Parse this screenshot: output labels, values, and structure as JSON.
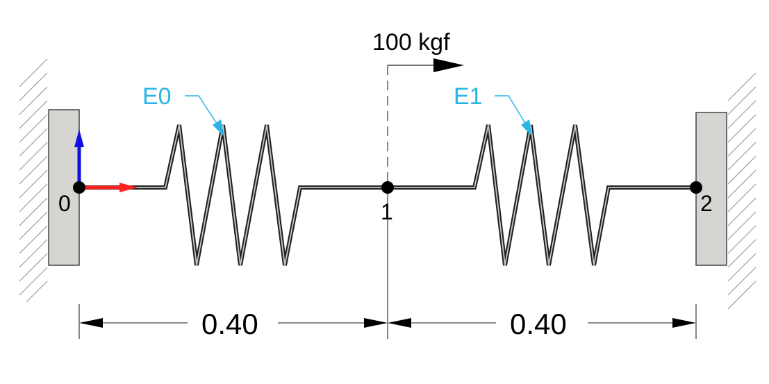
{
  "nodes": [
    {
      "label": "0"
    },
    {
      "label": "1"
    },
    {
      "label": "2"
    }
  ],
  "elements": [
    {
      "label": "E0"
    },
    {
      "label": "E1"
    }
  ],
  "load": {
    "label": "100 kgf"
  },
  "dimensions": [
    {
      "label": "0.40"
    },
    {
      "label": "0.40"
    }
  ],
  "colors": {
    "element_label": "#29b6e6",
    "axis_x": "#ff2020",
    "axis_y": "#1010e0",
    "support_fill": "#d6d5d2",
    "line": "#000000"
  }
}
